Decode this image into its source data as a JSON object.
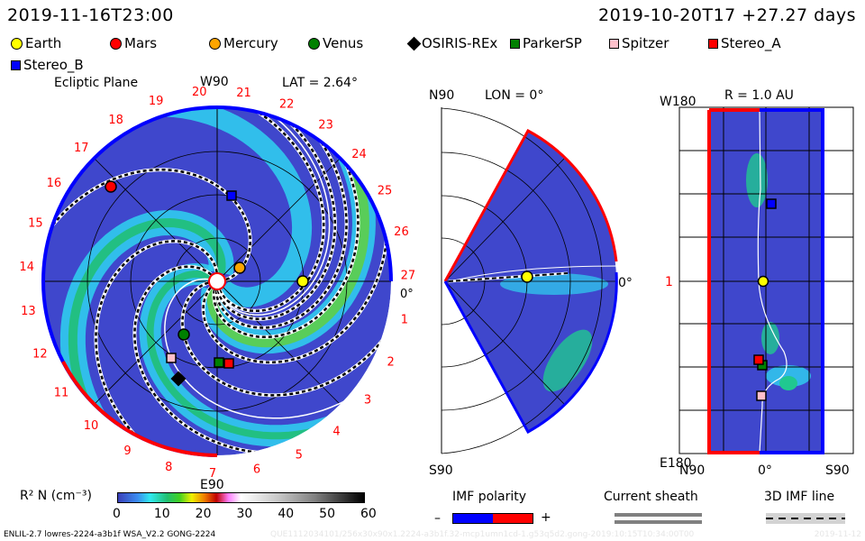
{
  "header": {
    "timestamp": "2019-11-16T23:00",
    "run_info": "2019-10-20T17 +27.27 days"
  },
  "legend": [
    {
      "label": "Earth",
      "shape": "circle",
      "color": "#ffff00"
    },
    {
      "label": "Mars",
      "shape": "circle",
      "color": "#ff0000"
    },
    {
      "label": "Mercury",
      "shape": "circle",
      "color": "#ffa500"
    },
    {
      "label": "Venus",
      "shape": "circle",
      "color": "#008000"
    },
    {
      "label": "OSIRIS-REx",
      "shape": "diamond",
      "color": "#000000"
    },
    {
      "label": "ParkerSP",
      "shape": "square",
      "color": "#008000"
    },
    {
      "label": "Spitzer",
      "shape": "square",
      "color": "#ffc0cb"
    },
    {
      "label": "Stereo_A",
      "shape": "square",
      "color": "#ff0000"
    },
    {
      "label": "Stereo_B",
      "shape": "square",
      "color": "#0000ff"
    }
  ],
  "ecliptic": {
    "title": "Ecliptic Plane",
    "top_label": "W90",
    "bottom_label": "E90",
    "right_label": "0°",
    "lat": "LAT = 2.64°",
    "carrington_labels": [
      "1",
      "2",
      "3",
      "4",
      "5",
      "6",
      "7",
      "8",
      "9",
      "10",
      "11",
      "12",
      "13",
      "14",
      "15",
      "16",
      "17",
      "18",
      "19",
      "20",
      "21",
      "22",
      "23",
      "24",
      "25",
      "26",
      "27"
    ]
  },
  "meridional": {
    "top_label": "N90",
    "bottom_label": "S90",
    "lon": "LON = 0°",
    "right_label": "0°"
  },
  "sphere": {
    "title": "R = 1.0 AU",
    "top_left": "W180",
    "bottom_left": "E180",
    "left_tick": "1",
    "x_left": "N90",
    "x_mid": "0°",
    "x_right": "S90"
  },
  "colorbar": {
    "label": "R² N (cm⁻³)",
    "ticks": [
      "0",
      "10",
      "20",
      "30",
      "40",
      "50",
      "60"
    ]
  },
  "imf_polarity": {
    "label": "IMF polarity",
    "minus": "–",
    "plus": "+",
    "neg_color": "#0000ff",
    "pos_color": "#ff0000"
  },
  "current_sheath": {
    "label": "Current sheath"
  },
  "imf_line": {
    "label": "3D IMF line"
  },
  "footer": {
    "model": "ENLIL-2.7 lowres-2224-a3b1f WSA_V2.2 GONG-2224",
    "run_id": "QUE1112034101/256x30x90x1.2224-a3b1f.32-mcp1umn1cd-1.g53q5d2.gong-2019:10:15T10:34:00T00",
    "date": "2019-11-12"
  }
}
